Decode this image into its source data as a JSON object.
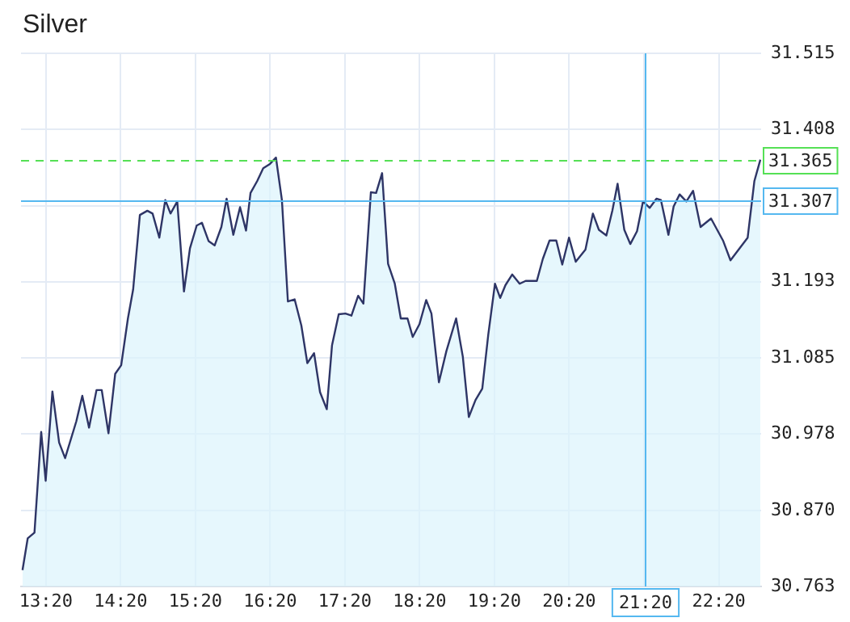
{
  "chart_data": {
    "type": "area",
    "title": "Silver",
    "series": [
      {
        "color": "#2e3566",
        "x": [
          13.02,
          13.09,
          13.18,
          13.27,
          13.33,
          13.42,
          13.51,
          13.59,
          13.74,
          13.82,
          13.91,
          14.01,
          14.08,
          14.17,
          14.26,
          14.34,
          14.43,
          14.5,
          14.59,
          14.69,
          14.76,
          14.85,
          14.93,
          15.0,
          15.09,
          15.18,
          15.26,
          15.35,
          15.42,
          15.51,
          15.59,
          15.68,
          15.75,
          15.84,
          15.93,
          16.01,
          16.07,
          16.16,
          16.24,
          16.33,
          16.41,
          16.49,
          16.57,
          16.66,
          16.75,
          16.83,
          16.92,
          17.0,
          17.09,
          17.16,
          17.25,
          17.34,
          17.42,
          17.51,
          17.58,
          17.68,
          17.75,
          17.83,
          17.91,
          18.0,
          18.08,
          18.17,
          18.24,
          18.33,
          18.42,
          18.49,
          18.59,
          18.69,
          18.82,
          18.91,
          18.99,
          19.08,
          19.17,
          19.25,
          19.34,
          19.41,
          19.48,
          19.57,
          19.67,
          19.75,
          19.9,
          19.98,
          20.07,
          20.16,
          20.24,
          20.33,
          20.42,
          20.55,
          20.65,
          20.73,
          20.83,
          20.91,
          20.98,
          21.07,
          21.15,
          21.24,
          21.32,
          21.41,
          21.5,
          21.56,
          21.66,
          21.73,
          21.81,
          21.9,
          21.99,
          22.09,
          22.23,
          22.39,
          22.49,
          22.72,
          22.81,
          22.89
        ],
        "values": [
          30.786,
          30.831,
          30.839,
          30.981,
          30.912,
          31.038,
          30.966,
          30.944,
          30.996,
          31.032,
          30.987,
          31.04,
          31.04,
          30.979,
          31.063,
          31.075,
          31.141,
          31.182,
          31.287,
          31.293,
          31.289,
          31.255,
          31.308,
          31.289,
          31.306,
          31.179,
          31.24,
          31.272,
          31.276,
          31.25,
          31.244,
          31.27,
          31.31,
          31.259,
          31.298,
          31.265,
          31.318,
          31.335,
          31.353,
          31.359,
          31.368,
          31.308,
          31.165,
          31.168,
          31.131,
          31.078,
          31.092,
          31.037,
          31.013,
          31.103,
          31.147,
          31.148,
          31.145,
          31.173,
          31.162,
          31.319,
          31.318,
          31.346,
          31.218,
          31.19,
          31.141,
          31.141,
          31.115,
          31.133,
          31.167,
          31.148,
          31.051,
          31.095,
          31.141,
          31.087,
          31.002,
          31.026,
          31.042,
          31.118,
          31.19,
          31.17,
          31.188,
          31.203,
          31.19,
          31.194,
          31.194,
          31.225,
          31.251,
          31.251,
          31.217,
          31.255,
          31.221,
          31.238,
          31.289,
          31.266,
          31.258,
          31.293,
          31.331,
          31.266,
          31.246,
          31.264,
          31.306,
          31.297,
          31.31,
          31.308,
          31.259,
          31.299,
          31.316,
          31.306,
          31.321,
          31.27,
          31.282,
          31.251,
          31.223,
          31.255,
          31.335,
          31.365
        ]
      }
    ],
    "xlim": [
      13.0,
      22.9
    ],
    "xticks": [
      {
        "value": 13.333,
        "label": "13:20"
      },
      {
        "value": 14.333,
        "label": "14:20"
      },
      {
        "value": 15.333,
        "label": "15:20"
      },
      {
        "value": 16.333,
        "label": "16:20"
      },
      {
        "value": 17.333,
        "label": "17:20"
      },
      {
        "value": 18.333,
        "label": "18:20"
      },
      {
        "value": 19.333,
        "label": "19:20"
      },
      {
        "value": 20.333,
        "label": "20:20"
      },
      {
        "value": 21.333,
        "label": null
      },
      {
        "value": 22.333,
        "label": "22:20"
      }
    ],
    "ylim": [
      30.763,
      31.515
    ],
    "yticks": [
      30.763,
      {
        "value": 30.87,
        "label": "30.870"
      },
      30.978,
      31.085,
      31.193,
      {
        "value": 31.3,
        "label": null
      },
      31.408,
      31.515
    ],
    "ref_lines": [
      {
        "axis": "y",
        "value": 31.365,
        "label": "31.365",
        "color": "#55e055",
        "line_style": "dashed"
      },
      {
        "axis": "y",
        "value": 31.307,
        "label": "31.307",
        "color": "#55b8f0",
        "line_style": "solid"
      },
      {
        "axis": "x",
        "value": 21.333,
        "label": "21:20",
        "color": "#55b8f0",
        "line_style": "solid"
      }
    ],
    "grid": true,
    "legend": false,
    "marker": "none",
    "line_style": "solid"
  }
}
